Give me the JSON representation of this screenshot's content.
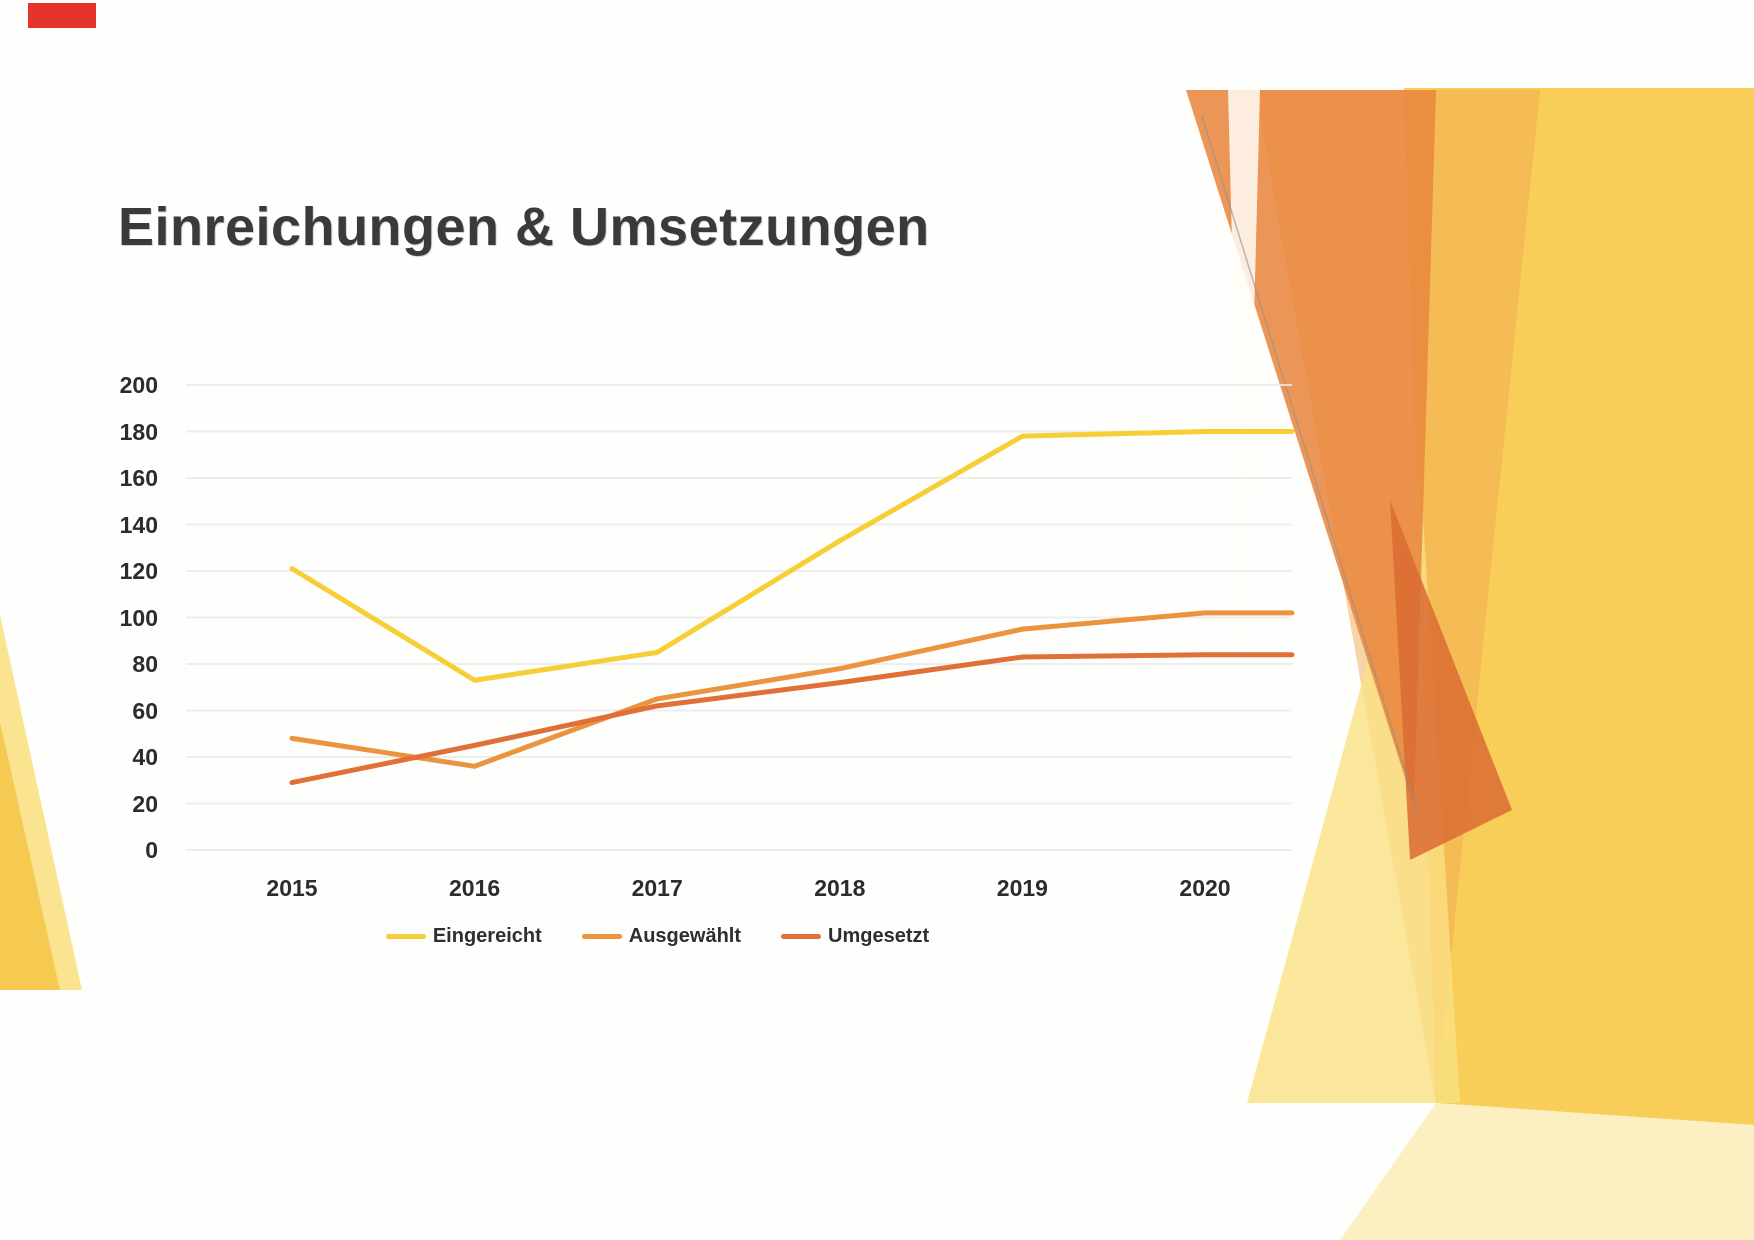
{
  "slide": {
    "title": "Einreichungen & Umsetzungen"
  },
  "chart_data": {
    "type": "line",
    "title": "Einreichungen & Umsetzungen",
    "categories": [
      "2015",
      "2016",
      "2017",
      "2018",
      "2019",
      "2020"
    ],
    "series": [
      {
        "name": "Eingereicht",
        "color": "#F5CF35",
        "values": [
          121,
          73,
          85,
          133,
          178,
          180
        ]
      },
      {
        "name": "Ausgewählt",
        "color": "#EA9440",
        "values": [
          48,
          36,
          65,
          78,
          95,
          102
        ]
      },
      {
        "name": "Umgesetzt",
        "color": "#E06F38",
        "values": [
          29,
          45,
          62,
          72,
          83,
          84
        ]
      }
    ],
    "xlabel": "",
    "ylabel": "",
    "ylim": [
      0,
      200
    ],
    "ytick_step": 20,
    "grid": true,
    "legend_position": "bottom"
  },
  "decor_colors": {
    "red_bar": "#E5342B",
    "gold": "#F8CC52",
    "orange": "#E8873F",
    "light_orange": "#F2A74F",
    "light_yellow": "#FAE183",
    "pale_yellow": "#FBEBAE",
    "dark_orange": "#DB6B33"
  }
}
